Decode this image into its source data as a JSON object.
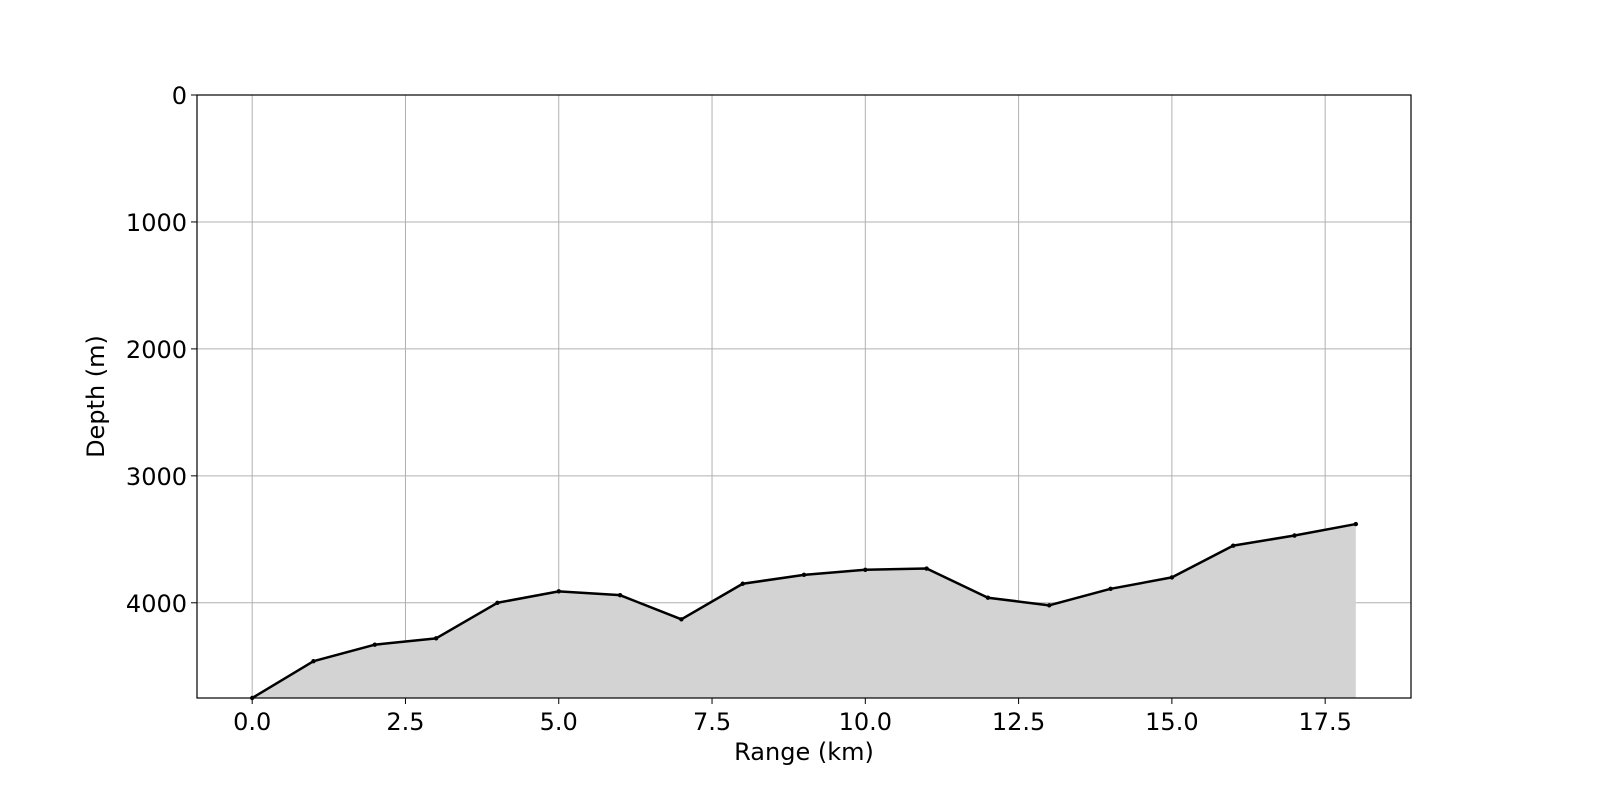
{
  "chart_data": {
    "type": "area",
    "xlabel": "Range (km)",
    "ylabel": "Depth (m)",
    "xlim": [
      -0.9,
      18.9
    ],
    "ylim": [
      4750,
      0
    ],
    "y_inverted": true,
    "grid": true,
    "x_ticks": [
      "0.0",
      "2.5",
      "5.0",
      "7.5",
      "10.0",
      "12.5",
      "15.0",
      "17.5"
    ],
    "x_tick_values": [
      0,
      2.5,
      5,
      7.5,
      10,
      12.5,
      15,
      17.5
    ],
    "y_ticks": [
      "0",
      "1000",
      "2000",
      "3000",
      "4000"
    ],
    "y_tick_values": [
      0,
      1000,
      2000,
      3000,
      4000
    ],
    "fill_color": "#d3d3d3",
    "line_color": "#000000",
    "series": [
      {
        "x": [
          0,
          1,
          2,
          3,
          4,
          5,
          6,
          7,
          8,
          9,
          10,
          11,
          12,
          13,
          14,
          15,
          16,
          17,
          18
        ],
        "y": [
          4750,
          4460,
          4330,
          4280,
          4000,
          3910,
          3940,
          4130,
          3850,
          3780,
          3740,
          3730,
          3960,
          4020,
          3890,
          3800,
          3550,
          3470,
          3380
        ]
      }
    ]
  }
}
